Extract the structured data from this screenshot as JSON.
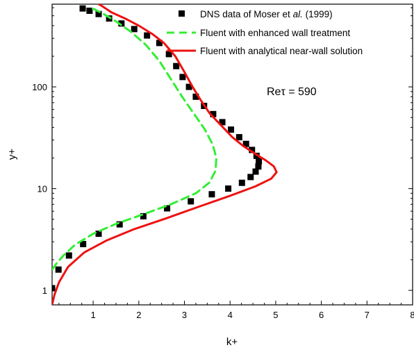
{
  "chart_data": {
    "type": "line",
    "title": "",
    "xlabel": "k+",
    "ylabel": "y+",
    "xlim": [
      0.1,
      8
    ],
    "ylim": [
      0.72,
      650
    ],
    "y_scale": "log",
    "grid": false,
    "legend_position": "top-right",
    "x_ticks": [
      "1",
      "2",
      "3",
      "4",
      "5",
      "6",
      "7",
      "8"
    ],
    "x_tick_values": [
      1,
      2,
      3,
      4,
      5,
      6,
      7,
      8
    ],
    "y_ticks": [
      "1",
      "10",
      "100"
    ],
    "y_tick_values": [
      1,
      10,
      100
    ],
    "annotation": "Reτ = 590",
    "series": [
      {
        "name": "DNS data of Moser et al. (1999)",
        "legend_parts": [
          "DNS data of Moser et ",
          "al.",
          " (1999)"
        ],
        "style": "square-markers",
        "color": "#000000",
        "points": [
          [
            0.1,
            1.05
          ],
          [
            0.24,
            1.6
          ],
          [
            0.47,
            2.2
          ],
          [
            0.78,
            2.85
          ],
          [
            1.12,
            3.6
          ],
          [
            1.58,
            4.45
          ],
          [
            2.1,
            5.35
          ],
          [
            2.62,
            6.4
          ],
          [
            3.14,
            7.5
          ],
          [
            3.6,
            8.8
          ],
          [
            3.96,
            10.0
          ],
          [
            4.26,
            11.4
          ],
          [
            4.45,
            13.0
          ],
          [
            4.56,
            14.7
          ],
          [
            4.62,
            16.5
          ],
          [
            4.63,
            18.5
          ],
          [
            4.58,
            21.0
          ],
          [
            4.48,
            24.0
          ],
          [
            4.35,
            27.5
          ],
          [
            4.2,
            32.0
          ],
          [
            4.02,
            38.0
          ],
          [
            3.83,
            45.0
          ],
          [
            3.63,
            54.0
          ],
          [
            3.43,
            65.0
          ],
          [
            3.25,
            80.0
          ],
          [
            3.1,
            100.0
          ],
          [
            2.96,
            125.0
          ],
          [
            2.82,
            160.0
          ],
          [
            2.66,
            210.0
          ],
          [
            2.45,
            270.0
          ],
          [
            2.18,
            320.0
          ],
          [
            1.9,
            370.0
          ],
          [
            1.62,
            420.0
          ],
          [
            1.35,
            470.0
          ],
          [
            1.12,
            520.0
          ],
          [
            0.92,
            560.0
          ],
          [
            0.77,
            590.0
          ]
        ]
      },
      {
        "name": "Fluent with enhanced wall treatment",
        "style": "dashed",
        "color": "#33ee33",
        "points": [
          [
            0.1,
            1.6
          ],
          [
            0.2,
            1.85
          ],
          [
            0.35,
            2.2
          ],
          [
            0.6,
            2.8
          ],
          [
            1.0,
            3.6
          ],
          [
            1.5,
            4.5
          ],
          [
            2.1,
            5.6
          ],
          [
            2.7,
            7.0
          ],
          [
            3.25,
            9.0
          ],
          [
            3.55,
            11.5
          ],
          [
            3.68,
            15.0
          ],
          [
            3.7,
            20.0
          ],
          [
            3.62,
            27.0
          ],
          [
            3.45,
            38.0
          ],
          [
            3.2,
            55.0
          ],
          [
            2.95,
            80.0
          ],
          [
            2.7,
            120.0
          ],
          [
            2.45,
            180.0
          ],
          [
            2.15,
            260.0
          ],
          [
            1.82,
            350.0
          ],
          [
            1.5,
            440.0
          ],
          [
            1.2,
            530.0
          ],
          [
            0.95,
            600.0
          ]
        ]
      },
      {
        "name": "Fluent with analytical near-wall solution",
        "style": "solid",
        "color": "#ee1111",
        "points": [
          [
            0.1,
            0.72
          ],
          [
            0.15,
            0.9
          ],
          [
            0.25,
            1.2
          ],
          [
            0.45,
            1.7
          ],
          [
            0.8,
            2.35
          ],
          [
            1.3,
            3.1
          ],
          [
            1.9,
            4.0
          ],
          [
            2.6,
            5.1
          ],
          [
            3.3,
            6.6
          ],
          [
            4.0,
            8.5
          ],
          [
            4.55,
            10.5
          ],
          [
            4.9,
            12.5
          ],
          [
            5.02,
            14.5
          ],
          [
            4.96,
            16.5
          ],
          [
            4.78,
            19.0
          ],
          [
            4.55,
            22.0
          ],
          [
            4.3,
            26.0
          ],
          [
            4.05,
            32.0
          ],
          [
            3.8,
            42.0
          ],
          [
            3.55,
            55.0
          ],
          [
            3.35,
            75.0
          ],
          [
            3.18,
            100.0
          ],
          [
            3.0,
            140.0
          ],
          [
            2.8,
            200.0
          ],
          [
            2.55,
            270.0
          ],
          [
            2.3,
            330.0
          ],
          [
            2.0,
            400.0
          ],
          [
            1.7,
            470.0
          ],
          [
            1.4,
            540.0
          ],
          [
            1.2,
            620.0
          ],
          [
            1.12,
            650.0
          ]
        ]
      }
    ]
  }
}
